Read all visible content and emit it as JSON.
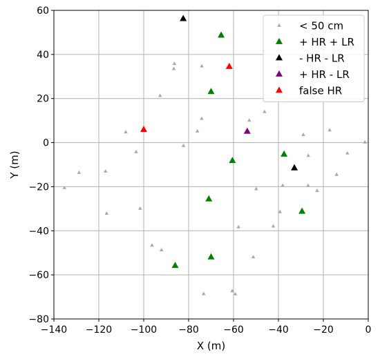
{
  "chart_data": {
    "type": "scatter",
    "xlabel": "X (m)",
    "ylabel": "Y (m)",
    "xlim": [
      -140,
      0
    ],
    "ylim": [
      -80,
      60
    ],
    "xticks": [
      -140,
      -120,
      -100,
      -80,
      -60,
      -40,
      -20,
      0
    ],
    "yticks": [
      -80,
      -60,
      -40,
      -20,
      0,
      20,
      40,
      60
    ],
    "xtick_labels": [
      "−140",
      "−120",
      "−100",
      "−80",
      "−60",
      "−40",
      "−20",
      "0"
    ],
    "ytick_labels": [
      "−80",
      "−60",
      "−40",
      "−20",
      "0",
      "20",
      "40",
      "60"
    ],
    "grid": true,
    "legend_position": "top-right",
    "series": [
      {
        "name": "< 50 cm",
        "color": "#a9a9a9",
        "marker": "small-triangle",
        "points": [
          [
            -135.3,
            -20.5
          ],
          [
            -128.8,
            -13.6
          ],
          [
            -117.0,
            -13.0
          ],
          [
            -116.5,
            -32.1
          ],
          [
            -108.0,
            4.8
          ],
          [
            -103.4,
            -4.2
          ],
          [
            -101.6,
            -29.9
          ],
          [
            -96.3,
            -46.6
          ],
          [
            -92.1,
            -48.7
          ],
          [
            -92.7,
            21.3
          ],
          [
            -86.3,
            35.8
          ],
          [
            -86.6,
            33.5
          ],
          [
            -82.3,
            -1.4
          ],
          [
            -74.1,
            34.7
          ],
          [
            -74.2,
            10.9
          ],
          [
            -76.1,
            5.2
          ],
          [
            -73.3,
            -68.6
          ],
          [
            -60.6,
            -67.3
          ],
          [
            -59.2,
            -68.7
          ],
          [
            -57.8,
            -38.3
          ],
          [
            -53.0,
            10.1
          ],
          [
            -51.2,
            -51.9
          ],
          [
            -49.9,
            -21.0
          ],
          [
            -46.2,
            14.0
          ],
          [
            -42.3,
            -37.9
          ],
          [
            -39.3,
            -31.4
          ],
          [
            -38.1,
            -19.4
          ],
          [
            -28.9,
            3.6
          ],
          [
            -26.7,
            -5.9
          ],
          [
            -26.8,
            -19.5
          ],
          [
            -22.8,
            -21.8
          ],
          [
            -17.2,
            5.7
          ],
          [
            -14.1,
            -14.5
          ],
          [
            -9.3,
            -4.8
          ],
          [
            -1.5,
            0.2
          ]
        ]
      },
      {
        "name": "+ HR + LR",
        "color": "#008000",
        "marker": "triangle",
        "points": [
          [
            -65.5,
            48.7
          ],
          [
            -70.0,
            23.1
          ],
          [
            -60.5,
            -8.2
          ],
          [
            -37.5,
            -5.3
          ],
          [
            -71.0,
            -25.6
          ],
          [
            -29.5,
            -31.2
          ],
          [
            -70.0,
            -51.9
          ],
          [
            -86.0,
            -55.8
          ]
        ]
      },
      {
        "name": "- HR - LR",
        "color": "#000000",
        "marker": "triangle",
        "points": [
          [
            -82.4,
            56.2
          ],
          [
            -32.9,
            -11.5
          ]
        ]
      },
      {
        "name": "+ HR - LR",
        "color": "#800080",
        "marker": "triangle",
        "points": [
          [
            -53.9,
            5.1
          ]
        ]
      },
      {
        "name": "false HR",
        "color": "#ff0000",
        "marker": "triangle",
        "points": [
          [
            -61.9,
            34.5
          ],
          [
            -100.0,
            5.9
          ]
        ]
      }
    ]
  }
}
